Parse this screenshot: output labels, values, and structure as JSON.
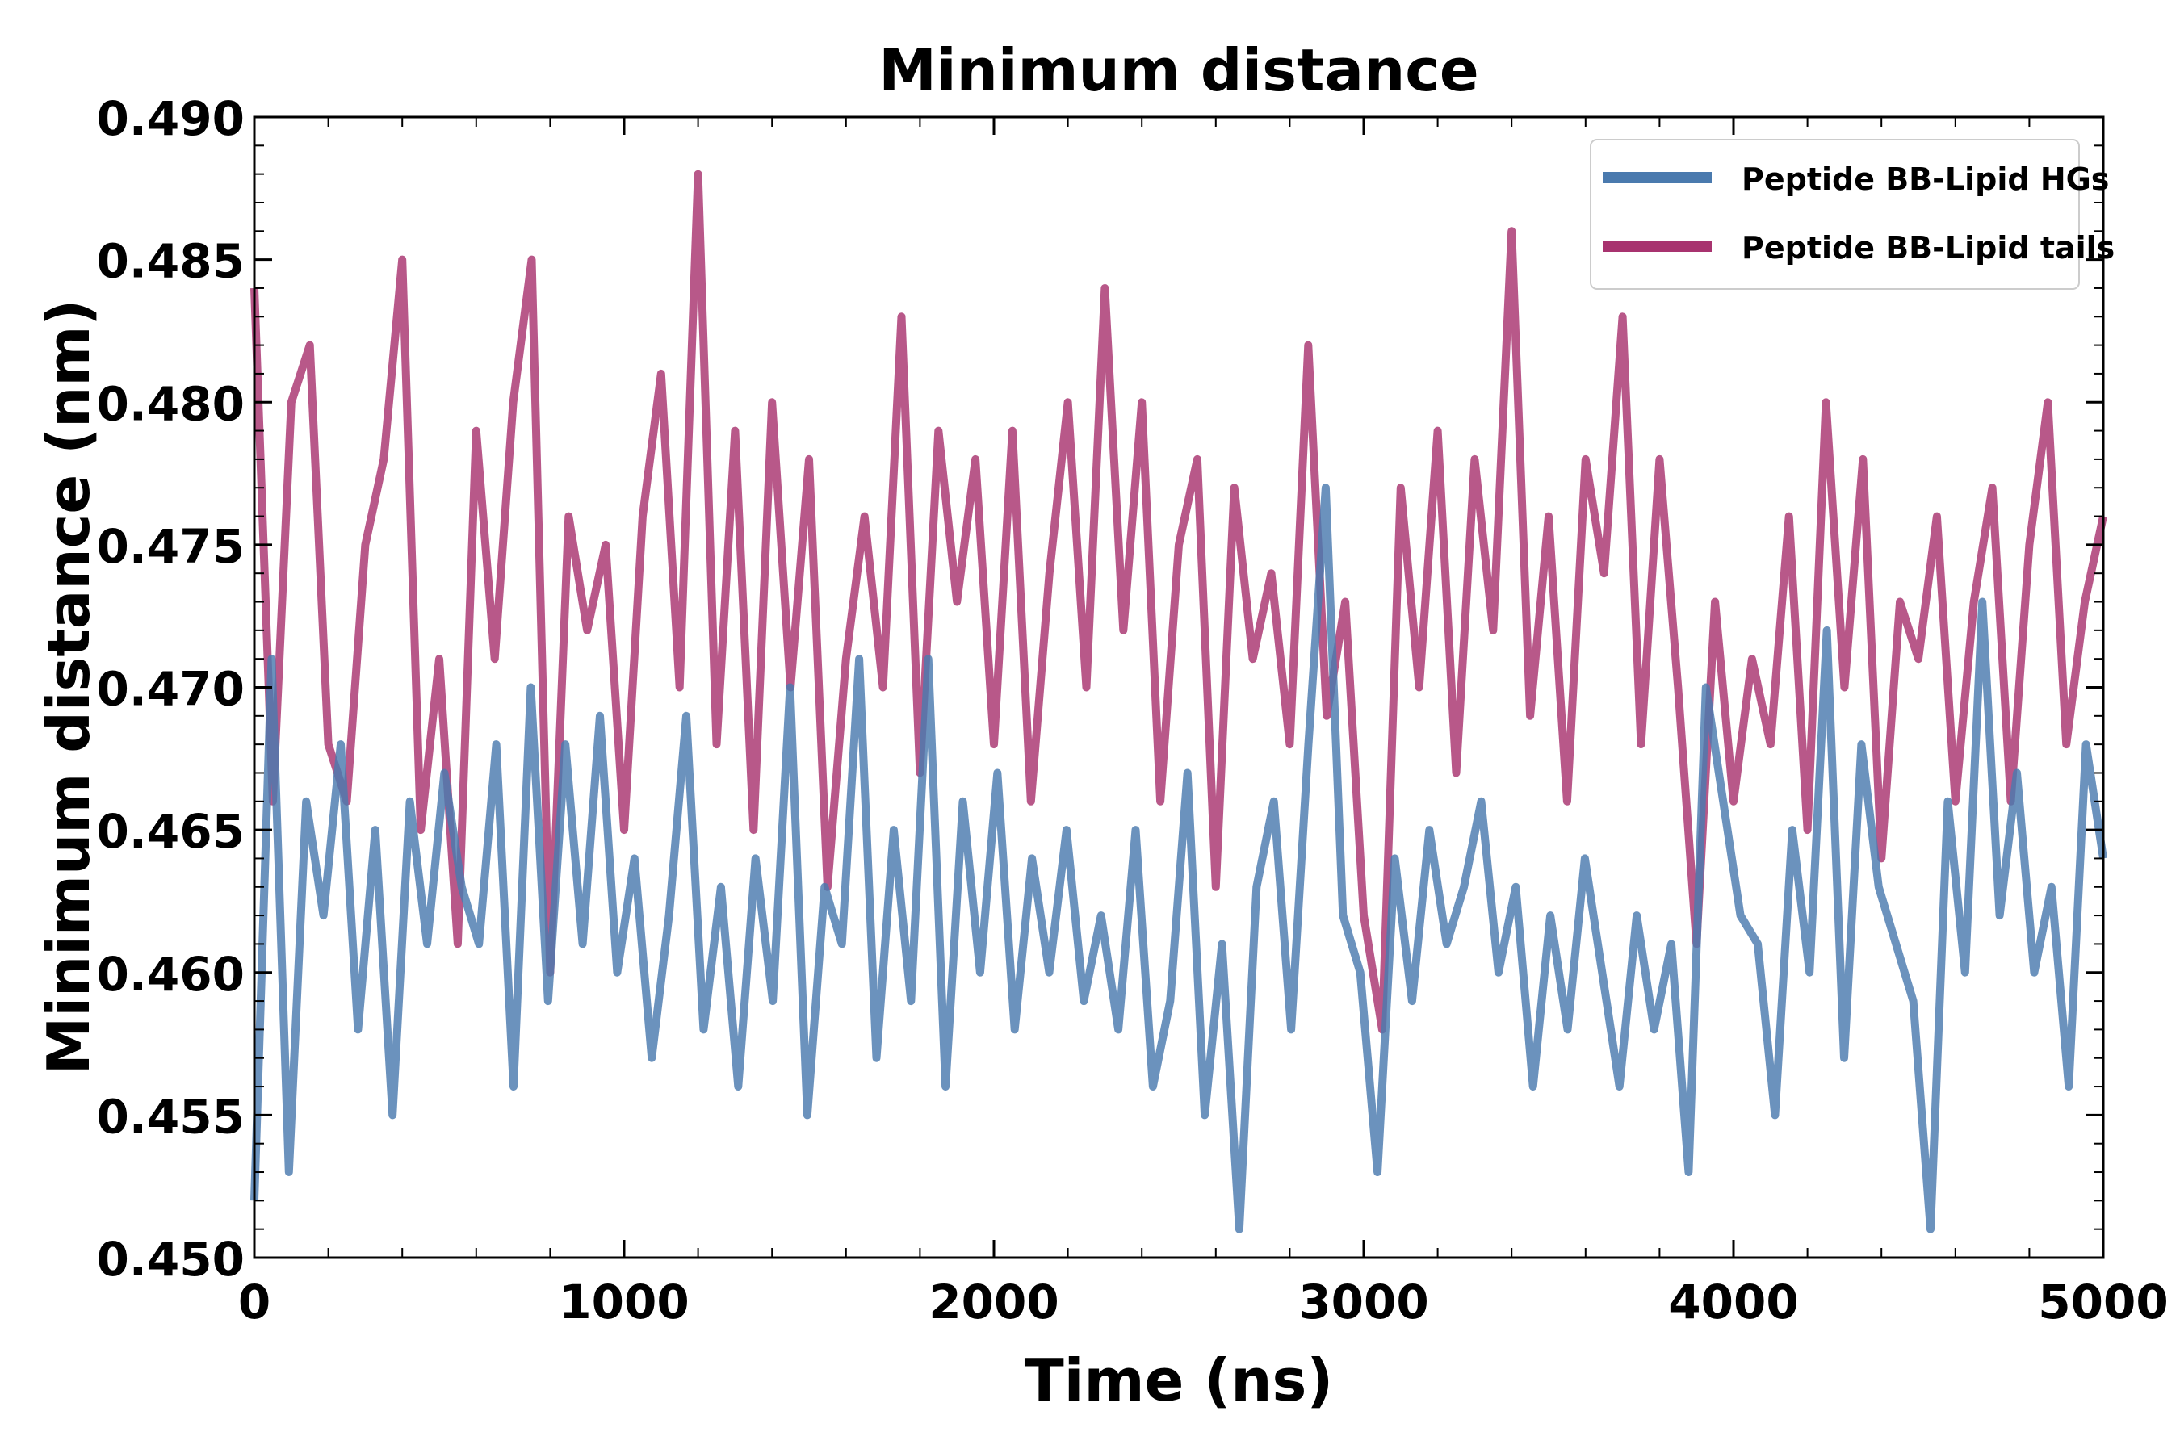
{
  "chart_data": {
    "type": "line",
    "title": "Minimum distance",
    "xlabel": "Time (ns)",
    "ylabel": "Minimum distance (nm)",
    "xlim": [
      0,
      5000
    ],
    "ylim": [
      0.45,
      0.49
    ],
    "xticks": [
      "0",
      "1000",
      "2000",
      "3000",
      "4000",
      "5000"
    ],
    "xtick_values": [
      0,
      1000,
      2000,
      3000,
      4000,
      5000
    ],
    "yticks": [
      "0.450",
      "0.455",
      "0.460",
      "0.465",
      "0.470",
      "0.475",
      "0.480",
      "0.485",
      "0.490"
    ],
    "ytick_values": [
      0.45,
      0.455,
      0.46,
      0.465,
      0.47,
      0.475,
      0.48,
      0.485,
      0.49
    ],
    "grid": false,
    "legend_position": "top-right",
    "series": [
      {
        "name": "Peptide BB-Lipid HGs",
        "color": "#4a7aae",
        "values": [
          0.452,
          0.471,
          0.453,
          0.466,
          0.462,
          0.468,
          0.458,
          0.465,
          0.455,
          0.466,
          0.461,
          0.467,
          0.463,
          0.461,
          0.468,
          0.456,
          0.47,
          0.459,
          0.468,
          0.461,
          0.469,
          0.46,
          0.464,
          0.457,
          0.462,
          0.469,
          0.458,
          0.463,
          0.456,
          0.464,
          0.459,
          0.47,
          0.455,
          0.463,
          0.461,
          0.471,
          0.457,
          0.465,
          0.459,
          0.471,
          0.456,
          0.466,
          0.46,
          0.467,
          0.458,
          0.464,
          0.46,
          0.465,
          0.459,
          0.462,
          0.458,
          0.465,
          0.456,
          0.459,
          0.467,
          0.455,
          0.461,
          0.451,
          0.463,
          0.466,
          0.458,
          0.468,
          0.477,
          0.462,
          0.46,
          0.453,
          0.464,
          0.459,
          0.465,
          0.461,
          0.463,
          0.466,
          0.46,
          0.463,
          0.456,
          0.462,
          0.458,
          0.464,
          0.46,
          0.456,
          0.462,
          0.458,
          0.461,
          0.453,
          0.47,
          0.466,
          0.462,
          0.461,
          0.455,
          0.465,
          0.46,
          0.472,
          0.457,
          0.468,
          0.463,
          0.461,
          0.459,
          0.451,
          0.466,
          0.46,
          0.473,
          0.462,
          0.467,
          0.46,
          0.463,
          0.456,
          0.468,
          0.464
        ]
      },
      {
        "name": "Peptide BB-Lipid tails",
        "color": "#a8336f",
        "values": [
          0.484,
          0.466,
          0.48,
          0.482,
          0.468,
          0.466,
          0.475,
          0.478,
          0.485,
          0.465,
          0.471,
          0.461,
          0.479,
          0.471,
          0.48,
          0.485,
          0.46,
          0.476,
          0.472,
          0.475,
          0.465,
          0.476,
          0.481,
          0.47,
          0.488,
          0.468,
          0.479,
          0.465,
          0.48,
          0.47,
          0.478,
          0.463,
          0.471,
          0.476,
          0.47,
          0.483,
          0.467,
          0.479,
          0.473,
          0.478,
          0.468,
          0.479,
          0.466,
          0.474,
          0.48,
          0.47,
          0.484,
          0.472,
          0.48,
          0.466,
          0.475,
          0.478,
          0.463,
          0.477,
          0.471,
          0.474,
          0.468,
          0.482,
          0.469,
          0.473,
          0.462,
          0.458,
          0.477,
          0.47,
          0.479,
          0.467,
          0.478,
          0.472,
          0.486,
          0.469,
          0.476,
          0.466,
          0.478,
          0.474,
          0.483,
          0.468,
          0.478,
          0.47,
          0.461,
          0.473,
          0.466,
          0.471,
          0.468,
          0.476,
          0.465,
          0.48,
          0.47,
          0.478,
          0.464,
          0.473,
          0.471,
          0.476,
          0.466,
          0.473,
          0.477,
          0.466,
          0.475,
          0.48,
          0.468,
          0.473,
          0.476
        ]
      }
    ]
  }
}
